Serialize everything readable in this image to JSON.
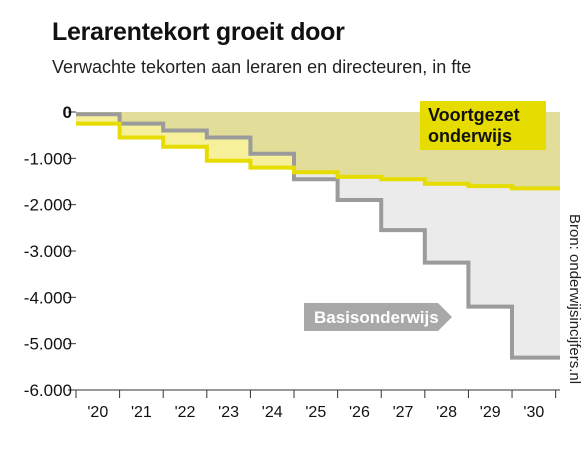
{
  "title": "Lerarentekort groeit door",
  "subtitle": "Verwachte tekorten aan leraren en directeuren, in fte",
  "source": "Bron: onderwijsincijfers.nl",
  "colors": {
    "voortgezet_line": "#e6dc00",
    "voortgezet_fill": "#e2dd98",
    "voortgezet_band": "#f5f099",
    "voortgezet_label_bg": "#e6dc00",
    "basis_line": "#9b9b9b",
    "basis_fill": "#ebebeb",
    "basis_label_bg": "#a8a8a8",
    "basis_label_text": "#ffffff",
    "axis": "#333333",
    "text": "#111111"
  },
  "chart_data": {
    "type": "area",
    "step": true,
    "x_ticks": [
      "'20",
      "'21",
      "'22",
      "'23",
      "'24",
      "'25",
      "'26",
      "'27",
      "'28",
      "'29",
      "'30"
    ],
    "y_ticks": [
      "0",
      "-1.000",
      "-2.000",
      "-3.000",
      "-4.000",
      "-5.000",
      "-6.000"
    ],
    "ylim": [
      -6000,
      0
    ],
    "xlim": [
      2019.5,
      2030.6
    ],
    "grid": false,
    "series": [
      {
        "name": "Voortgezet onderwijs",
        "label_lines": [
          "Voortgezet",
          "onderwijs"
        ],
        "x": [
          2020,
          2021,
          2022,
          2023,
          2024,
          2025,
          2026,
          2027,
          2028,
          2029,
          2030
        ],
        "values": [
          -250,
          -550,
          -750,
          -1050,
          -1200,
          -1300,
          -1400,
          -1450,
          -1550,
          -1600,
          -1650
        ]
      },
      {
        "name": "Basisonderwijs",
        "label_lines": [
          "Basisonderwijs"
        ],
        "x": [
          2020,
          2021,
          2022,
          2023,
          2024,
          2025,
          2026,
          2027,
          2028,
          2029,
          2030
        ],
        "values": [
          -50,
          -250,
          -400,
          -550,
          -900,
          -1450,
          -1900,
          -2550,
          -3250,
          -4200,
          -5300
        ]
      }
    ]
  }
}
